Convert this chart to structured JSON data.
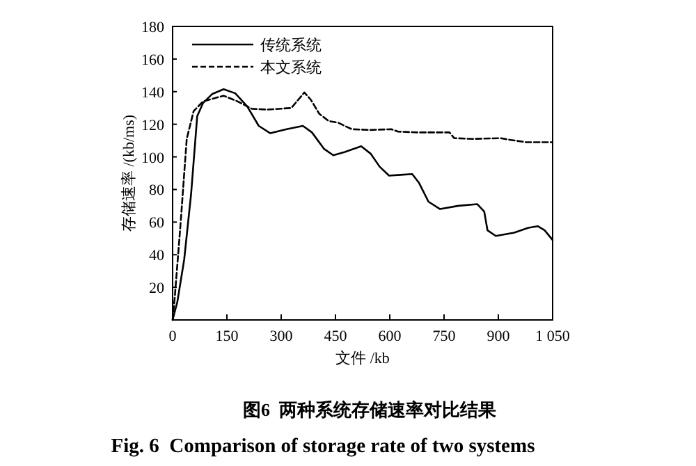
{
  "chart_data": {
    "type": "line",
    "title": "图6  两种系统存储速率对比结果",
    "subtitle": "Fig. 6  Comparison of storage rate of two systems",
    "xlabel": "文件 /kb",
    "ylabel": "存储速率 /(kb/ms)",
    "xlim": [
      0,
      1050
    ],
    "ylim": [
      0,
      180
    ],
    "xticks": [
      0,
      150,
      300,
      450,
      600,
      750,
      900,
      {
        "value": 1050,
        "label": "1 050"
      }
    ],
    "yticks": [
      20,
      40,
      60,
      80,
      100,
      120,
      140,
      160,
      180
    ],
    "grid": false,
    "legend": "top left",
    "marker": "none",
    "series": [
      {
        "name": "传统系统",
        "color": "#000000",
        "line_style": "solid",
        "x": [
          0,
          13,
          32,
          51,
          68,
          84,
          109,
          141,
          173,
          206,
          238,
          270,
          315,
          360,
          385,
          418,
          444,
          476,
          521,
          547,
          572,
          598,
          630,
          662,
          681,
          707,
          739,
          790,
          842,
          861,
          870,
          893,
          944,
          983,
          1009,
          1028,
          1050
        ],
        "values": [
          0,
          11,
          37,
          77,
          125,
          133,
          138.5,
          141.5,
          139,
          131,
          119,
          114.5,
          117,
          119,
          115,
          105,
          101,
          103,
          106.5,
          102,
          94,
          88.5,
          89,
          89.5,
          84,
          72.5,
          68,
          70,
          71,
          66.5,
          55,
          51.5,
          53.5,
          56.5,
          57.5,
          55,
          49
        ]
      },
      {
        "name": "本文系统",
        "color": "#000000",
        "line_style": "dashed",
        "x": [
          0,
          6,
          22,
          39,
          58,
          84,
          141,
          180,
          219,
          263,
          328,
          347,
          364,
          382,
          405,
          431,
          457,
          495,
          547,
          604,
          623,
          675,
          765,
          778,
          829,
          906,
          931,
          976,
          1050
        ],
        "values": [
          0,
          14,
          59,
          111,
          128,
          134,
          137.5,
          134,
          129.5,
          129,
          130,
          135,
          139.5,
          135,
          126.5,
          122,
          121,
          117,
          116.5,
          117,
          115.5,
          115,
          115,
          111.5,
          111,
          111.5,
          110.5,
          109,
          109
        ]
      }
    ]
  }
}
